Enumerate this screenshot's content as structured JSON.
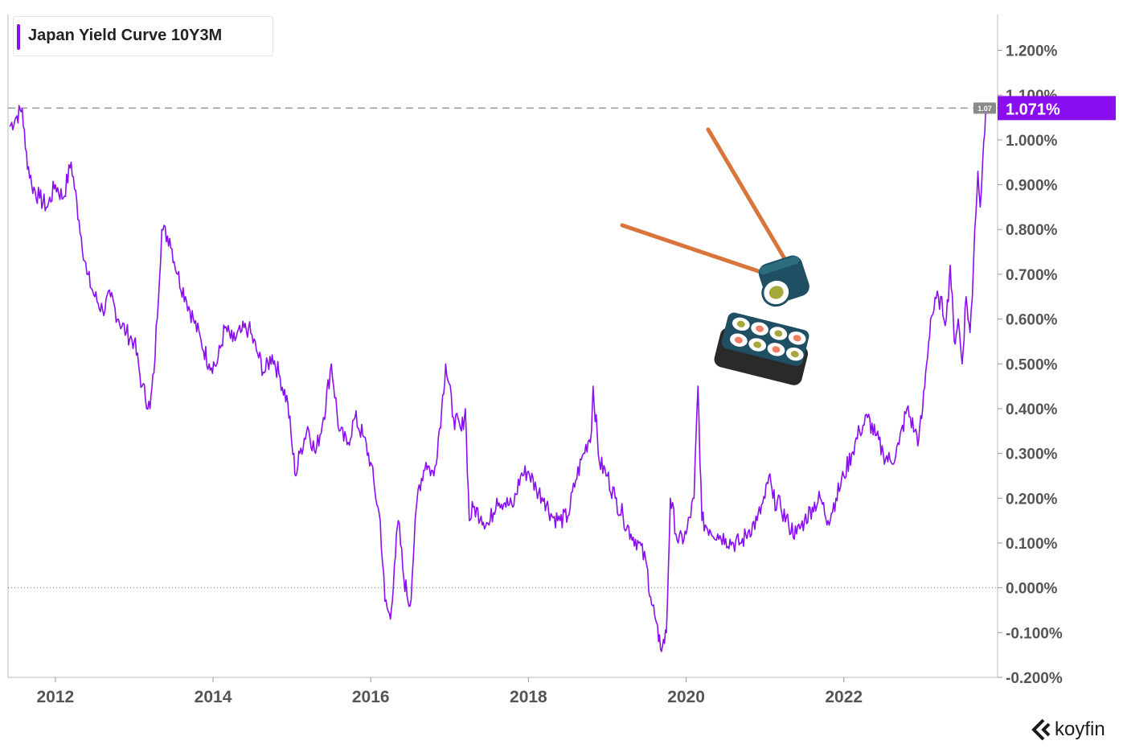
{
  "chart_data": {
    "type": "line",
    "title": "Japan Yield Curve 10Y3M",
    "xlabel": "",
    "ylabel": "",
    "xlim": [
      2011.4,
      2023.95
    ],
    "ylim": [
      -0.2,
      1.28
    ],
    "x_ticks": [
      "2012",
      "2014",
      "2016",
      "2018",
      "2020",
      "2022"
    ],
    "x_tick_values": [
      2012,
      2014,
      2016,
      2018,
      2020,
      2022
    ],
    "y_ticks": [
      "1.200%",
      "1.100%",
      "1.000%",
      "0.900%",
      "0.800%",
      "0.700%",
      "0.600%",
      "0.500%",
      "0.400%",
      "0.300%",
      "0.200%",
      "0.100%",
      "0.000%",
      "-0.100%",
      "-0.200%"
    ],
    "y_tick_values": [
      1.2,
      1.1,
      1.0,
      0.9,
      0.8,
      0.7,
      0.6,
      0.5,
      0.4,
      0.3,
      0.2,
      0.1,
      0.0,
      -0.1,
      -0.2
    ],
    "grid": false,
    "legend_position": "top-left",
    "series": [
      {
        "name": "Japan Yield Curve 10Y3M",
        "color": "#8a0ff0",
        "x": [
          2011.42,
          2011.5,
          2011.58,
          2011.62,
          2011.7,
          2011.8,
          2011.9,
          2012.0,
          2012.1,
          2012.2,
          2012.3,
          2012.4,
          2012.5,
          2012.6,
          2012.7,
          2012.8,
          2012.9,
          2013.0,
          2013.1,
          2013.2,
          2013.25,
          2013.35,
          2013.45,
          2013.55,
          2013.65,
          2013.75,
          2013.85,
          2013.95,
          2014.05,
          2014.15,
          2014.25,
          2014.35,
          2014.45,
          2014.55,
          2014.65,
          2014.75,
          2014.85,
          2014.95,
          2015.0,
          2015.05,
          2015.1,
          2015.2,
          2015.3,
          2015.4,
          2015.5,
          2015.6,
          2015.7,
          2015.8,
          2015.9,
          2016.0,
          2016.05,
          2016.12,
          2016.18,
          2016.25,
          2016.3,
          2016.35,
          2016.42,
          2016.5,
          2016.55,
          2016.6,
          2016.7,
          2016.8,
          2016.9,
          2016.95,
          2017.05,
          2017.15,
          2017.2,
          2017.25,
          2017.3,
          2017.4,
          2017.5,
          2017.6,
          2017.7,
          2017.8,
          2017.9,
          2018.0,
          2018.1,
          2018.2,
          2018.3,
          2018.4,
          2018.5,
          2018.6,
          2018.7,
          2018.8,
          2018.82,
          2018.9,
          2019.0,
          2019.1,
          2019.2,
          2019.3,
          2019.4,
          2019.5,
          2019.55,
          2019.6,
          2019.65,
          2019.7,
          2019.75,
          2019.8,
          2019.9,
          2020.0,
          2020.1,
          2020.15,
          2020.2,
          2020.3,
          2020.4,
          2020.5,
          2020.6,
          2020.7,
          2020.8,
          2020.9,
          2021.0,
          2021.05,
          2021.1,
          2021.2,
          2021.3,
          2021.4,
          2021.5,
          2021.6,
          2021.7,
          2021.8,
          2021.9,
          2022.0,
          2022.1,
          2022.2,
          2022.3,
          2022.4,
          2022.5,
          2022.6,
          2022.7,
          2022.8,
          2022.9,
          2022.95,
          2023.0,
          2023.05,
          2023.1,
          2023.2,
          2023.3,
          2023.35,
          2023.4,
          2023.45,
          2023.5,
          2023.55,
          2023.6,
          2023.63,
          2023.66,
          2023.7,
          2023.73,
          2023.76,
          2023.8
        ],
        "y": [
          1.03,
          1.05,
          1.07,
          0.98,
          0.9,
          0.87,
          0.85,
          0.9,
          0.87,
          0.95,
          0.82,
          0.7,
          0.65,
          0.62,
          0.65,
          0.6,
          0.57,
          0.55,
          0.45,
          0.4,
          0.48,
          0.8,
          0.78,
          0.7,
          0.65,
          0.6,
          0.55,
          0.5,
          0.5,
          0.58,
          0.55,
          0.57,
          0.58,
          0.53,
          0.48,
          0.52,
          0.47,
          0.41,
          0.32,
          0.25,
          0.3,
          0.36,
          0.3,
          0.38,
          0.5,
          0.35,
          0.32,
          0.38,
          0.34,
          0.28,
          0.22,
          0.15,
          -0.03,
          -0.07,
          0.05,
          0.15,
          0.02,
          -0.04,
          0.1,
          0.22,
          0.28,
          0.25,
          0.4,
          0.5,
          0.38,
          0.35,
          0.4,
          0.15,
          0.18,
          0.16,
          0.14,
          0.2,
          0.19,
          0.18,
          0.25,
          0.26,
          0.22,
          0.2,
          0.16,
          0.15,
          0.16,
          0.24,
          0.3,
          0.35,
          0.45,
          0.28,
          0.25,
          0.2,
          0.16,
          0.12,
          0.1,
          0.05,
          -0.02,
          -0.06,
          -0.12,
          -0.13,
          -0.1,
          0.2,
          0.1,
          0.12,
          0.2,
          0.45,
          0.15,
          0.13,
          0.12,
          0.11,
          0.1,
          0.1,
          0.13,
          0.15,
          0.2,
          0.25,
          0.2,
          0.18,
          0.14,
          0.12,
          0.15,
          0.18,
          0.2,
          0.15,
          0.2,
          0.25,
          0.3,
          0.35,
          0.38,
          0.34,
          0.3,
          0.28,
          0.32,
          0.4,
          0.35,
          0.33,
          0.4,
          0.5,
          0.6,
          0.65,
          0.6,
          0.72,
          0.55,
          0.6,
          0.5,
          0.65,
          0.57,
          0.65,
          0.8,
          0.93,
          0.85,
          0.95,
          1.071
        ]
      }
    ],
    "reference_lines": [
      {
        "y": 1.071,
        "style": "dashed",
        "color": "#999999"
      },
      {
        "y": 0.0,
        "style": "dotted",
        "color": "#777777"
      }
    ],
    "last_value_label": "1.071%",
    "last_value_small": "1.07"
  },
  "legend": {
    "label": "Japan Yield Curve 10Y3M",
    "color": "#8a0ff0"
  },
  "brand": {
    "name": "koyfin"
  },
  "illustration": {
    "name": "sushi-with-chopsticks"
  }
}
